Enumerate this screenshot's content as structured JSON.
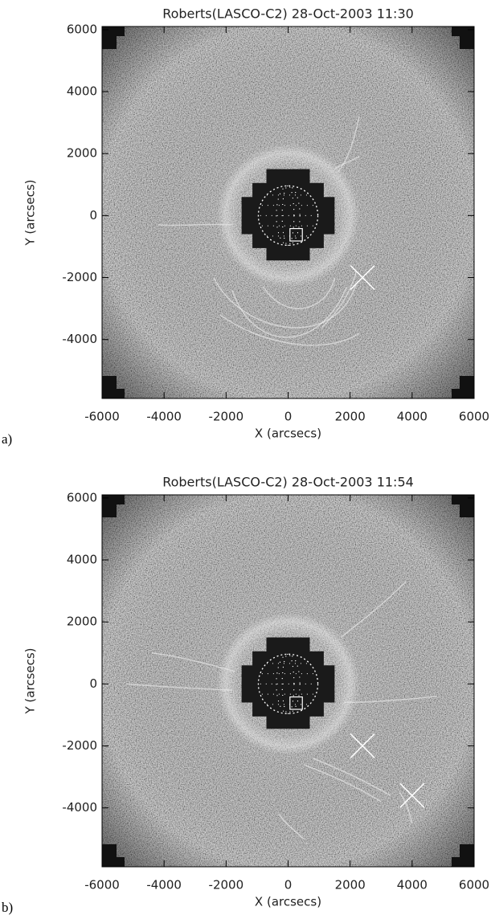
{
  "chart_data": [
    {
      "type": "image",
      "title": "Roberts(LASCO-C2) 28-Oct-2003 11:30",
      "panel_label": "a)",
      "xlabel": "X (arcsecs)",
      "ylabel": "Y (arcsecs)",
      "xlim": [
        -6000,
        6000
      ],
      "ylim": [
        -5900,
        6100
      ],
      "xticks": [
        -6000,
        -4000,
        -2000,
        0,
        2000,
        4000,
        6000
      ],
      "yticks": [
        -4000,
        -2000,
        0,
        2000,
        4000,
        6000
      ],
      "markers": {
        "x": [
          2400
        ],
        "y": [
          -2000
        ]
      }
    },
    {
      "type": "image",
      "title": "Roberts(LASCO-C2) 28-Oct-2003 11:54",
      "panel_label": "b)",
      "xlabel": "X (arcsecs)",
      "ylabel": "Y (arcsecs)",
      "xlim": [
        -6000,
        6000
      ],
      "ylim": [
        -5900,
        6100
      ],
      "xticks": [
        -6000,
        -4000,
        -2000,
        0,
        2000,
        4000,
        6000
      ],
      "yticks": [
        -4000,
        -2000,
        0,
        2000,
        4000,
        6000
      ],
      "markers": {
        "x": [
          2400,
          4000
        ],
        "y": [
          -2000,
          -3600
        ]
      }
    }
  ]
}
